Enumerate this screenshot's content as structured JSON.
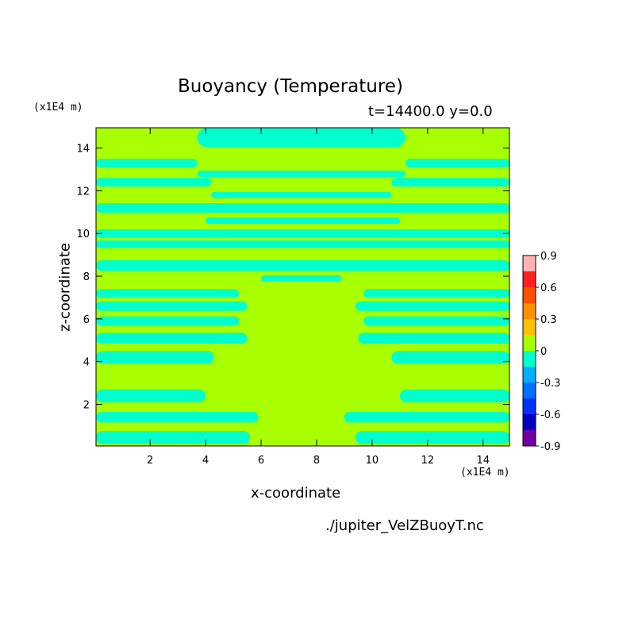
{
  "chart_data": {
    "type": "heatmap",
    "title": "Buoyancy (Temperature)",
    "subtitle": "t=14400.0 y=0.0",
    "xlabel": "x-coordinate",
    "ylabel": "z-coordinate",
    "x_unit": "(x1E4 m)",
    "y_unit": "(x1E4 m)",
    "xlim": [
      0.05,
      14.95
    ],
    "ylim": [
      0.05,
      14.95
    ],
    "xticks": [
      "2",
      "4",
      "6",
      "8",
      "10",
      "12",
      "14"
    ],
    "yticks": [
      "2",
      "4",
      "6",
      "8",
      "10",
      "12",
      "14"
    ],
    "colorbar": {
      "labels": [
        "0.9",
        "0.6",
        "0.3",
        "0",
        "-0.3",
        "-0.6",
        "-0.9"
      ],
      "levels": [
        0.9,
        0.75,
        0.6,
        0.45,
        0.3,
        0.15,
        0,
        -0.15,
        -0.3,
        -0.45,
        -0.6,
        -0.75,
        -0.9
      ],
      "colors": [
        "#ffb0b0",
        "#ff2020",
        "#ff5000",
        "#ff9000",
        "#ffc000",
        "#a8ff00",
        "#00ffcc",
        "#00b0ff",
        "#0070ff",
        "#0030ff",
        "#0000c0",
        "#7000a0"
      ]
    },
    "field_values": {
      "background": 0,
      "bands": -0.15
    },
    "bands": [
      {
        "z": 14.5,
        "half": 0.45,
        "x0": 3.7,
        "x1": 11.2
      },
      {
        "z": 13.3,
        "half": 0.2,
        "x0": 0.05,
        "x1": 14.95,
        "gap": [
          3.7,
          11.2
        ]
      },
      {
        "z": 12.8,
        "half": 0.15,
        "x0": 3.7,
        "x1": 11.2
      },
      {
        "z": 12.4,
        "half": 0.2,
        "x0": 0.05,
        "x1": 4.2
      },
      {
        "z": 12.4,
        "half": 0.2,
        "x0": 10.7,
        "x1": 14.95
      },
      {
        "z": 11.8,
        "half": 0.15,
        "x0": 4.2,
        "x1": 10.7
      },
      {
        "z": 11.2,
        "half": 0.22,
        "x0": 0.05,
        "x1": 14.95
      },
      {
        "z": 10.6,
        "half": 0.15,
        "x0": 4.0,
        "x1": 11.0
      },
      {
        "z": 10.0,
        "half": 0.2,
        "x0": 0.05,
        "x1": 14.95
      },
      {
        "z": 9.5,
        "half": 0.18,
        "x0": 0.05,
        "x1": 14.95
      },
      {
        "z": 8.5,
        "half": 0.25,
        "x0": 0.05,
        "x1": 14.95
      },
      {
        "z": 7.9,
        "half": 0.15,
        "x0": 6.0,
        "x1": 8.9
      },
      {
        "z": 7.2,
        "half": 0.2,
        "x0": 0.05,
        "x1": 5.2
      },
      {
        "z": 7.2,
        "half": 0.2,
        "x0": 9.7,
        "x1": 14.95
      },
      {
        "z": 6.6,
        "half": 0.22,
        "x0": 0.05,
        "x1": 5.5
      },
      {
        "z": 6.6,
        "half": 0.22,
        "x0": 9.4,
        "x1": 14.95
      },
      {
        "z": 5.9,
        "half": 0.22,
        "x0": 0.05,
        "x1": 5.2
      },
      {
        "z": 5.9,
        "half": 0.22,
        "x0": 9.7,
        "x1": 14.95
      },
      {
        "z": 5.1,
        "half": 0.25,
        "x0": 0.05,
        "x1": 5.5
      },
      {
        "z": 5.1,
        "half": 0.25,
        "x0": 9.5,
        "x1": 14.95
      },
      {
        "z": 4.2,
        "half": 0.3,
        "x0": 0.05,
        "x1": 4.3
      },
      {
        "z": 4.2,
        "half": 0.3,
        "x0": 10.7,
        "x1": 14.95
      },
      {
        "z": 2.4,
        "half": 0.3,
        "x0": 0.05,
        "x1": 4.0
      },
      {
        "z": 2.4,
        "half": 0.3,
        "x0": 11.0,
        "x1": 14.95
      },
      {
        "z": 1.4,
        "half": 0.25,
        "x0": 0.05,
        "x1": 5.9
      },
      {
        "z": 1.4,
        "half": 0.25,
        "x0": 9.0,
        "x1": 14.95
      },
      {
        "z": 0.45,
        "half": 0.3,
        "x0": 0.05,
        "x1": 5.6
      },
      {
        "z": 0.45,
        "half": 0.3,
        "x0": 9.4,
        "x1": 14.95
      }
    ]
  },
  "source_file": "./jupiter_VelZBuoyT.nc"
}
